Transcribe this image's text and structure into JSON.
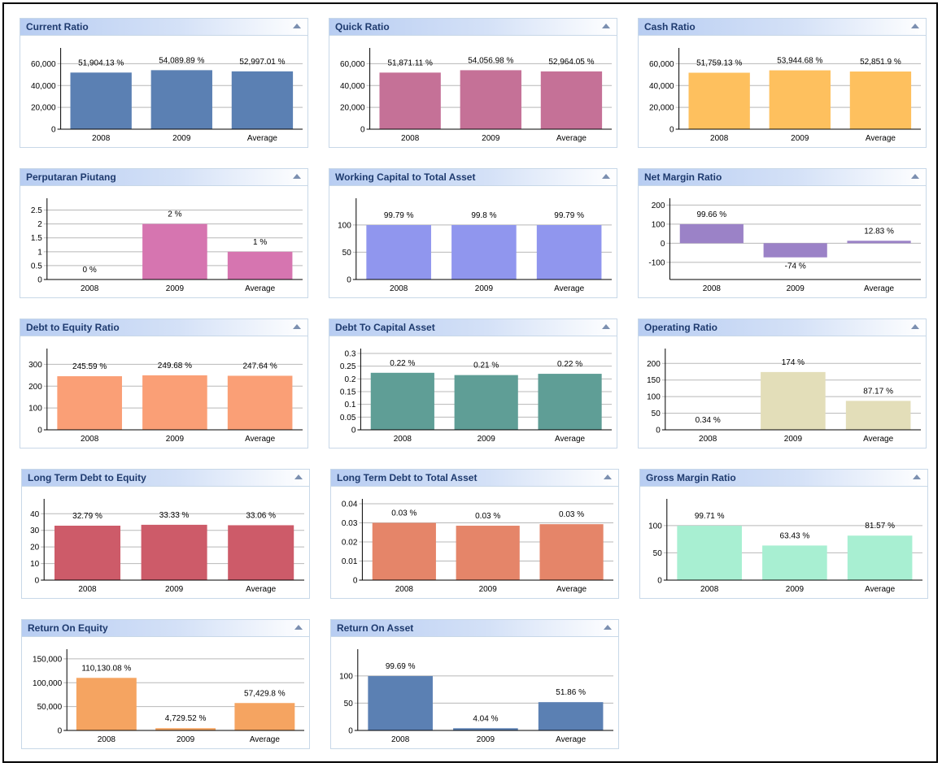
{
  "chart_data": [
    {
      "type": "bar",
      "title": "Current Ratio",
      "categories": [
        "2008",
        "2009",
        "Average"
      ],
      "values": [
        51904.13,
        54089.89,
        52997.01
      ],
      "labels": [
        "51,904.13 %",
        "54,089.89 %",
        "52,997.01 %"
      ],
      "ylim": [
        0,
        70000
      ],
      "ticks": [
        {
          "v": 0,
          "t": "0"
        },
        {
          "v": 20000,
          "t": "20,000"
        },
        {
          "v": 40000,
          "t": "40,000"
        },
        {
          "v": 60000,
          "t": "60,000"
        }
      ],
      "color": "#5b80b3"
    },
    {
      "type": "bar",
      "title": "Quick Ratio",
      "categories": [
        "2008",
        "2009",
        "Average"
      ],
      "values": [
        51871.11,
        54056.98,
        52964.05
      ],
      "labels": [
        "51,871.11 %",
        "54,056.98 %",
        "52,964.05 %"
      ],
      "ylim": [
        0,
        70000
      ],
      "ticks": [
        {
          "v": 0,
          "t": "0"
        },
        {
          "v": 20000,
          "t": "20,000"
        },
        {
          "v": 40000,
          "t": "40,000"
        },
        {
          "v": 60000,
          "t": "60,000"
        }
      ],
      "color": "#c57197"
    },
    {
      "type": "bar",
      "title": "Cash Ratio",
      "categories": [
        "2008",
        "2009",
        "Average"
      ],
      "values": [
        51759.13,
        53944.68,
        52851.9
      ],
      "labels": [
        "51,759.13 %",
        "53,944.68 %",
        "52,851.9 %"
      ],
      "ylim": [
        0,
        70000
      ],
      "ticks": [
        {
          "v": 0,
          "t": "0"
        },
        {
          "v": 20000,
          "t": "20,000"
        },
        {
          "v": 40000,
          "t": "40,000"
        },
        {
          "v": 60000,
          "t": "60,000"
        }
      ],
      "color": "#fec05e"
    },
    {
      "type": "bar",
      "title": "Perputaran Piutang",
      "categories": [
        "2008",
        "2009",
        "Average"
      ],
      "values": [
        0,
        2,
        1
      ],
      "labels": [
        "0 %",
        "2 %",
        "1 %"
      ],
      "ylim": [
        0,
        2.75
      ],
      "ticks": [
        {
          "v": 0,
          "t": "0"
        },
        {
          "v": 0.5,
          "t": "0.5"
        },
        {
          "v": 1,
          "t": "1"
        },
        {
          "v": 1.5,
          "t": "1.5"
        },
        {
          "v": 2,
          "t": "2"
        },
        {
          "v": 2.5,
          "t": "2.5"
        }
      ],
      "color": "#d675b0"
    },
    {
      "type": "bar",
      "title": "Working Capital to Total Asset",
      "categories": [
        "2008",
        "2009",
        "Average"
      ],
      "values": [
        99.79,
        99.8,
        99.79
      ],
      "labels": [
        "99.79 %",
        "99.8 %",
        "99.79 %"
      ],
      "ylim": [
        0,
        140
      ],
      "ticks": [
        {
          "v": 0,
          "t": "0"
        },
        {
          "v": 50,
          "t": "50"
        },
        {
          "v": 100,
          "t": "100"
        }
      ],
      "color": "#9096ee"
    },
    {
      "type": "bar",
      "title": "Net Margin Ratio",
      "categories": [
        "2008",
        "2009",
        "Average"
      ],
      "values": [
        99.66,
        -74,
        12.83
      ],
      "labels": [
        "99.66 %",
        "-74 %",
        "12.83 %"
      ],
      "ylim": [
        -190,
        210
      ],
      "ticks": [
        {
          "v": -100,
          "t": "-100"
        },
        {
          "v": 0,
          "t": "0"
        },
        {
          "v": 100,
          "t": "100"
        },
        {
          "v": 200,
          "t": "200"
        }
      ],
      "color": "#9b82c7"
    },
    {
      "type": "bar",
      "title": "Debt to Equity Ratio",
      "categories": [
        "2008",
        "2009",
        "Average"
      ],
      "values": [
        245.59,
        249.68,
        247.64
      ],
      "labels": [
        "245.59 %",
        "249.68 %",
        "247.64 %"
      ],
      "ylim": [
        0,
        350
      ],
      "ticks": [
        {
          "v": 0,
          "t": "0"
        },
        {
          "v": 100,
          "t": "100"
        },
        {
          "v": 200,
          "t": "200"
        },
        {
          "v": 300,
          "t": "300"
        }
      ],
      "color": "#fa9f76"
    },
    {
      "type": "bar",
      "title": "Debt To Capital Asset",
      "categories": [
        "2008",
        "2009",
        "Average"
      ],
      "values": [
        0.224,
        0.215,
        0.22
      ],
      "labels": [
        "0.22 %",
        "0.21 %",
        "0.22 %"
      ],
      "ylim": [
        0,
        0.3
      ],
      "ticks": [
        {
          "v": 0,
          "t": "0"
        },
        {
          "v": 0.05,
          "t": "0.05"
        },
        {
          "v": 0.1,
          "t": "0.1"
        },
        {
          "v": 0.15,
          "t": "0.15"
        },
        {
          "v": 0.2,
          "t": "0.2"
        },
        {
          "v": 0.25,
          "t": "0.25"
        },
        {
          "v": 0.3,
          "t": "0.3"
        }
      ],
      "color": "#5f9e96"
    },
    {
      "type": "bar",
      "title": "Operating Ratio",
      "categories": [
        "2008",
        "2009",
        "Average"
      ],
      "values": [
        0.34,
        174,
        87.17
      ],
      "labels": [
        "0.34 %",
        "174 %",
        "87.17 %"
      ],
      "ylim": [
        0,
        230
      ],
      "ticks": [
        {
          "v": 0,
          "t": "0"
        },
        {
          "v": 50,
          "t": "50"
        },
        {
          "v": 100,
          "t": "100"
        },
        {
          "v": 150,
          "t": "150"
        },
        {
          "v": 200,
          "t": "200"
        }
      ],
      "color": "#e3deb9"
    },
    {
      "type": "bar",
      "title": "Long Term Debt to Equity",
      "categories": [
        "2008",
        "2009",
        "Average"
      ],
      "values": [
        32.79,
        33.33,
        33.06
      ],
      "labels": [
        "32.79 %",
        "33.33 %",
        "33.06 %"
      ],
      "ylim": [
        0,
        46
      ],
      "ticks": [
        {
          "v": 0,
          "t": "0"
        },
        {
          "v": 10,
          "t": "10"
        },
        {
          "v": 20,
          "t": "20"
        },
        {
          "v": 30,
          "t": "30"
        },
        {
          "v": 40,
          "t": "40"
        }
      ],
      "color": "#cd5b69"
    },
    {
      "type": "bar",
      "title": "Long Term Debt to Total Asset",
      "categories": [
        "2008",
        "2009",
        "Average"
      ],
      "values": [
        0.03,
        0.0285,
        0.0293
      ],
      "labels": [
        "0.03 %",
        "0.03 %",
        "0.03 %"
      ],
      "ylim": [
        0,
        0.04
      ],
      "ticks": [
        {
          "v": 0,
          "t": "0"
        },
        {
          "v": 0.01,
          "t": "0.01"
        },
        {
          "v": 0.02,
          "t": "0.02"
        },
        {
          "v": 0.03,
          "t": "0.03"
        },
        {
          "v": 0.04,
          "t": "0.04"
        }
      ],
      "color": "#e58569"
    },
    {
      "type": "bar",
      "title": "Gross Margin Ratio",
      "categories": [
        "2008",
        "2009",
        "Average"
      ],
      "values": [
        99.71,
        63.43,
        81.57
      ],
      "labels": [
        "99.71 %",
        "63.43 %",
        "81.57 %"
      ],
      "ylim": [
        0,
        140
      ],
      "ticks": [
        {
          "v": 0,
          "t": "0"
        },
        {
          "v": 50,
          "t": "50"
        },
        {
          "v": 100,
          "t": "100"
        }
      ],
      "color": "#a8efd2"
    },
    {
      "type": "bar",
      "title": "Return On Equity",
      "categories": [
        "2008",
        "2009",
        "Average"
      ],
      "values": [
        110130.08,
        4729.52,
        57429.8
      ],
      "labels": [
        "110,130.08 %",
        "4,729.52 %",
        "57,429.8 %"
      ],
      "ylim": [
        0,
        160000
      ],
      "ticks": [
        {
          "v": 0,
          "t": "0"
        },
        {
          "v": 50000,
          "t": "50,000"
        },
        {
          "v": 100000,
          "t": "100,000"
        },
        {
          "v": 150000,
          "t": "150,000"
        }
      ],
      "color": "#f5a461"
    },
    {
      "type": "bar",
      "title": "Return On Asset",
      "categories": [
        "2008",
        "2009",
        "Average"
      ],
      "values": [
        99.69,
        4.04,
        51.86
      ],
      "labels": [
        "99.69 %",
        "4.04 %",
        "51.86 %"
      ],
      "ylim": [
        0,
        140
      ],
      "ticks": [
        {
          "v": 0,
          "t": "0"
        },
        {
          "v": 50,
          "t": "50"
        },
        {
          "v": 100,
          "t": "100"
        }
      ],
      "color": "#5b80b3"
    }
  ]
}
